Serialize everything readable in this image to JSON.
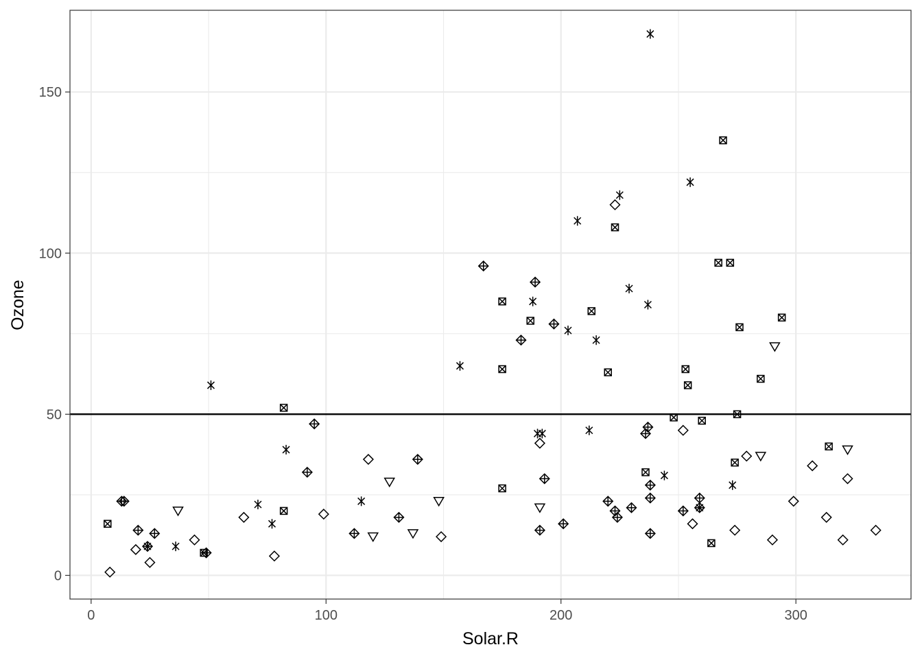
{
  "chart_data": {
    "type": "scatter",
    "xlabel": "Solar.R",
    "ylabel": "Ozone",
    "xlim": [
      -9,
      349
    ],
    "ylim": [
      -7.35,
      175.35
    ],
    "x_ticks": [
      0,
      100,
      200,
      300
    ],
    "y_ticks": [
      0,
      50,
      100,
      150
    ],
    "x_minor": [
      50,
      150,
      250
    ],
    "y_minor": [
      25,
      75,
      125
    ],
    "grid": true,
    "legend": "none",
    "hline": 50,
    "point_color": "#000000",
    "grid_color": "#ebebeb",
    "series": [
      {
        "shape": "diamond",
        "points": [
          [
            8,
            1
          ],
          [
            19,
            8
          ],
          [
            25,
            4
          ],
          [
            44,
            11
          ],
          [
            65,
            18
          ],
          [
            78,
            6
          ],
          [
            99,
            19
          ],
          [
            118,
            36
          ],
          [
            149,
            12
          ],
          [
            191,
            41
          ],
          [
            223,
            115
          ],
          [
            252,
            45
          ],
          [
            256,
            16
          ],
          [
            274,
            14
          ],
          [
            279,
            37
          ],
          [
            290,
            11
          ],
          [
            299,
            23
          ],
          [
            307,
            34
          ],
          [
            313,
            18
          ],
          [
            320,
            11
          ],
          [
            322,
            30
          ],
          [
            334,
            14
          ]
        ]
      },
      {
        "shape": "diamond-plus",
        "points": [
          [
            13,
            23
          ],
          [
            14,
            23
          ],
          [
            20,
            14
          ],
          [
            24,
            9
          ],
          [
            27,
            13
          ],
          [
            49,
            7
          ],
          [
            92,
            32
          ],
          [
            95,
            47
          ],
          [
            112,
            13
          ],
          [
            131,
            18
          ],
          [
            139,
            36
          ],
          [
            167,
            96
          ],
          [
            183,
            73
          ],
          [
            189,
            91
          ],
          [
            191,
            14
          ],
          [
            193,
            30
          ],
          [
            197,
            78
          ],
          [
            201,
            16
          ],
          [
            220,
            23
          ],
          [
            223,
            20
          ],
          [
            224,
            18
          ],
          [
            230,
            21
          ],
          [
            236,
            44
          ],
          [
            237,
            46
          ],
          [
            238,
            28
          ],
          [
            238,
            24
          ],
          [
            238,
            13
          ],
          [
            252,
            20
          ],
          [
            259,
            24
          ],
          [
            259,
            21
          ]
        ]
      },
      {
        "shape": "triangle-down",
        "points": [
          [
            37,
            20
          ],
          [
            120,
            12
          ],
          [
            127,
            29
          ],
          [
            137,
            13
          ],
          [
            148,
            23
          ],
          [
            191,
            21
          ],
          [
            285,
            37
          ],
          [
            291,
            71
          ],
          [
            322,
            39
          ]
        ]
      },
      {
        "shape": "asterisk",
        "points": [
          [
            24,
            9
          ],
          [
            36,
            9
          ],
          [
            51,
            59
          ],
          [
            71,
            22
          ],
          [
            77,
            16
          ],
          [
            83,
            39
          ],
          [
            115,
            23
          ],
          [
            157,
            65
          ],
          [
            188,
            85
          ],
          [
            190,
            44
          ],
          [
            192,
            44
          ],
          [
            203,
            76
          ],
          [
            207,
            110
          ],
          [
            212,
            45
          ],
          [
            215,
            73
          ],
          [
            225,
            118
          ],
          [
            229,
            89
          ],
          [
            237,
            84
          ],
          [
            238,
            168
          ],
          [
            244,
            31
          ],
          [
            255,
            122
          ],
          [
            259,
            21
          ],
          [
            273,
            28
          ]
        ]
      },
      {
        "shape": "square-x",
        "points": [
          [
            7,
            16
          ],
          [
            48,
            7
          ],
          [
            82,
            20
          ],
          [
            82,
            52
          ],
          [
            175,
            85
          ],
          [
            175,
            64
          ],
          [
            175,
            27
          ],
          [
            187,
            79
          ],
          [
            213,
            82
          ],
          [
            220,
            63
          ],
          [
            223,
            108
          ],
          [
            236,
            32
          ],
          [
            248,
            49
          ],
          [
            253,
            64
          ],
          [
            254,
            59
          ],
          [
            260,
            48
          ],
          [
            264,
            10
          ],
          [
            267,
            97
          ],
          [
            269,
            135
          ],
          [
            272,
            97
          ],
          [
            274,
            35
          ],
          [
            275,
            50
          ],
          [
            276,
            77
          ],
          [
            285,
            61
          ],
          [
            294,
            80
          ],
          [
            314,
            40
          ]
        ]
      }
    ]
  }
}
